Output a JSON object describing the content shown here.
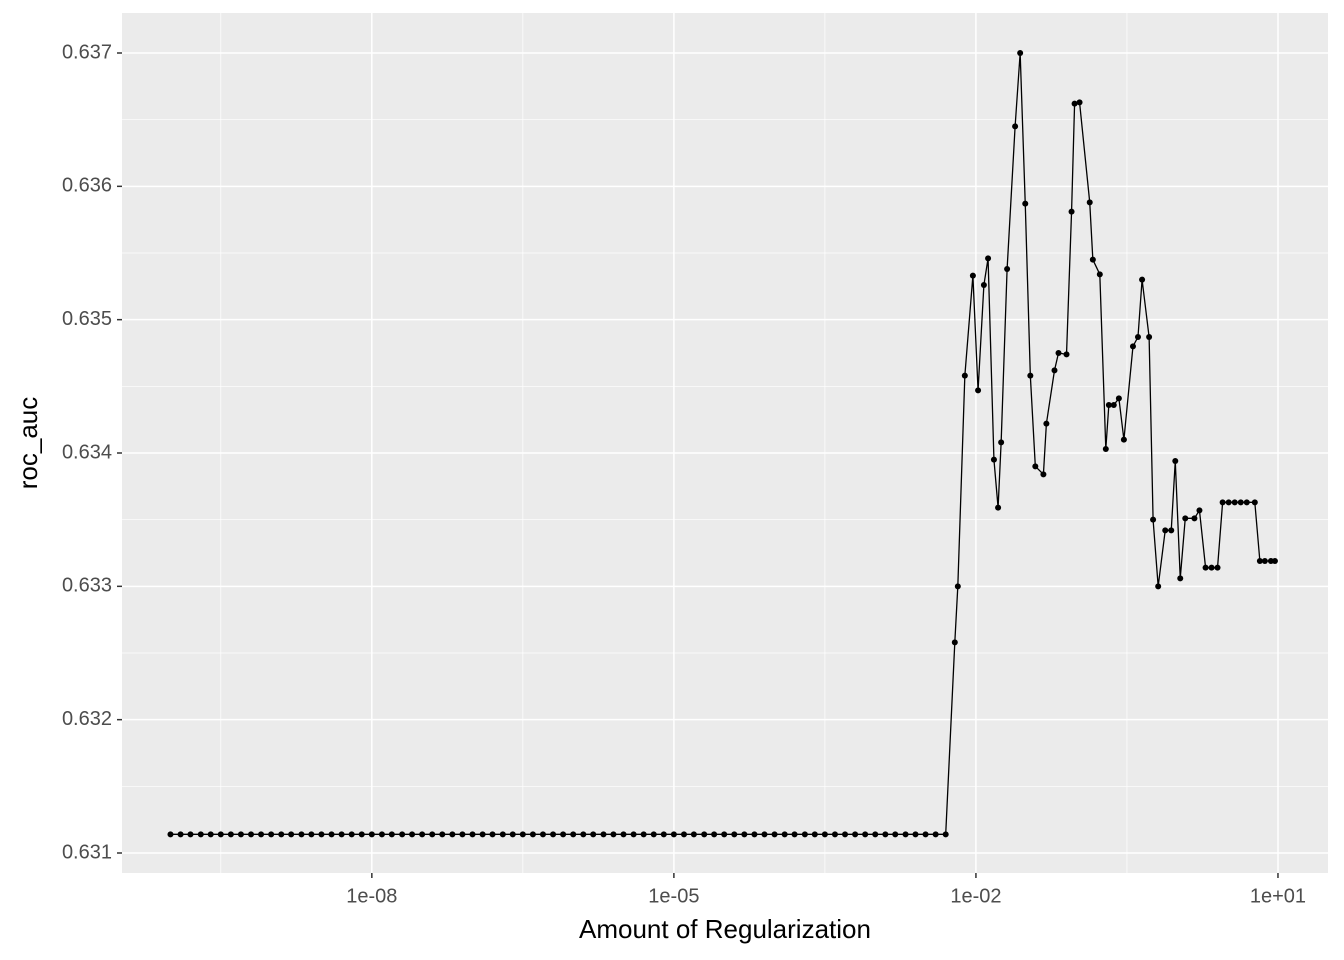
{
  "chart_data": {
    "type": "line",
    "x_label": "Amount of Regularization",
    "y_label": "roc_auc",
    "log_x": true,
    "grid": true,
    "color": "#000000",
    "xlim": [
      3.3e-11,
      31.4
    ],
    "ylim": [
      0.63085,
      0.6373
    ],
    "xticks": [
      {
        "value": 1e-08,
        "label": "1e-08"
      },
      {
        "value": 1e-05,
        "label": "1e-05"
      },
      {
        "value": 0.01,
        "label": "1e-02"
      },
      {
        "value": 10,
        "label": "1e+01"
      }
    ],
    "yticks": [
      0.631,
      0.632,
      0.633,
      0.634,
      0.635,
      0.636,
      0.637
    ],
    "x": [
      1e-10,
      1.26e-10,
      1.58e-10,
      2e-10,
      2.51e-10,
      3.16e-10,
      3.98e-10,
      5.01e-10,
      6.31e-10,
      7.94e-10,
      1e-09,
      1.26e-09,
      1.58e-09,
      2e-09,
      2.51e-09,
      3.16e-09,
      3.98e-09,
      5.01e-09,
      6.31e-09,
      7.94e-09,
      1e-08,
      1.26e-08,
      1.58e-08,
      2e-08,
      2.51e-08,
      3.16e-08,
      3.98e-08,
      5.01e-08,
      6.31e-08,
      7.94e-08,
      1e-07,
      1.26e-07,
      1.58e-07,
      2e-07,
      2.51e-07,
      3.16e-07,
      3.98e-07,
      5.01e-07,
      6.31e-07,
      7.94e-07,
      1e-06,
      1.26e-06,
      1.58e-06,
      2e-06,
      2.51e-06,
      3.16e-06,
      3.98e-06,
      5.01e-06,
      6.31e-06,
      7.94e-06,
      1e-05,
      1.26e-05,
      1.58e-05,
      2e-05,
      2.51e-05,
      3.16e-05,
      3.98e-05,
      5.01e-05,
      6.31e-05,
      7.94e-05,
      0.0001,
      0.000126,
      0.000158,
      0.0002,
      0.000251,
      0.000316,
      0.000398,
      0.000501,
      0.000631,
      0.000794,
      0.001,
      0.00126,
      0.00158,
      0.002,
      0.00251,
      0.00316,
      0.00398,
      0.00501,
      0.00617,
      0.00661,
      0.00776,
      0.00933,
      0.0105,
      0.012,
      0.0132,
      0.0151,
      0.0166,
      0.0178,
      0.0204,
      0.0245,
      0.0275,
      0.0309,
      0.0347,
      0.0389,
      0.0468,
      0.0501,
      0.0603,
      0.0661,
      0.0794,
      0.0891,
      0.0955,
      0.107,
      0.135,
      0.145,
      0.17,
      0.195,
      0.209,
      0.234,
      0.263,
      0.295,
      0.363,
      0.407,
      0.447,
      0.525,
      0.575,
      0.646,
      0.759,
      0.871,
      0.955,
      1.07,
      1.2,
      1.48,
      1.66,
      1.91,
      2.19,
      2.51,
      2.82,
      3.24,
      3.72,
      4.27,
      4.9,
      5.89,
      6.61,
      7.41,
      8.51,
      9.33
    ],
    "values": [
      0.63114,
      0.63114,
      0.63114,
      0.63114,
      0.63114,
      0.63114,
      0.63114,
      0.63114,
      0.63114,
      0.63114,
      0.63114,
      0.63114,
      0.63114,
      0.63114,
      0.63114,
      0.63114,
      0.63114,
      0.63114,
      0.63114,
      0.63114,
      0.63114,
      0.63114,
      0.63114,
      0.63114,
      0.63114,
      0.63114,
      0.63114,
      0.63114,
      0.63114,
      0.63114,
      0.63114,
      0.63114,
      0.63114,
      0.63114,
      0.63114,
      0.63114,
      0.63114,
      0.63114,
      0.63114,
      0.63114,
      0.63114,
      0.63114,
      0.63114,
      0.63114,
      0.63114,
      0.63114,
      0.63114,
      0.63114,
      0.63114,
      0.63114,
      0.63114,
      0.63114,
      0.63114,
      0.63114,
      0.63114,
      0.63114,
      0.63114,
      0.63114,
      0.63114,
      0.63114,
      0.63114,
      0.63114,
      0.63114,
      0.63114,
      0.63114,
      0.63114,
      0.63114,
      0.63114,
      0.63114,
      0.63114,
      0.63114,
      0.63114,
      0.63114,
      0.63114,
      0.63114,
      0.63114,
      0.63114,
      0.63114,
      0.63258,
      0.633,
      0.63458,
      0.63533,
      0.63447,
      0.63526,
      0.63546,
      0.63395,
      0.63359,
      0.63408,
      0.63538,
      0.63645,
      0.637,
      0.63587,
      0.63458,
      0.6339,
      0.63384,
      0.63422,
      0.63462,
      0.63475,
      0.63474,
      0.63581,
      0.63662,
      0.63663,
      0.63588,
      0.63545,
      0.63534,
      0.63403,
      0.63436,
      0.63436,
      0.63441,
      0.6341,
      0.6348,
      0.63487,
      0.6353,
      0.63487,
      0.6335,
      0.633,
      0.63342,
      0.63342,
      0.63394,
      0.63306,
      0.63351,
      0.63351,
      0.63357,
      0.63314,
      0.63314,
      0.63314,
      0.63363,
      0.63363,
      0.63363,
      0.63363,
      0.63363,
      0.63363,
      0.63319,
      0.63319,
      0.63319,
      0.63319
    ]
  }
}
